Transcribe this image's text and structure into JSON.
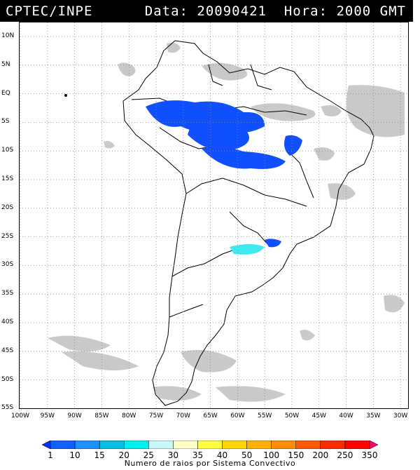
{
  "header": {
    "source": "CPTEC/INPE",
    "date_label": "Data: 20090421",
    "time_label": "Hora: 2000 GMT"
  },
  "map": {
    "lat_labels": [
      "10N",
      "5N",
      "EQ",
      "5S",
      "10S",
      "15S",
      "20S",
      "25S",
      "30S",
      "35S",
      "40S",
      "45S",
      "50S",
      "55S"
    ],
    "lon_labels": [
      "100W",
      "95W",
      "90W",
      "85W",
      "80W",
      "75W",
      "70W",
      "65W",
      "60W",
      "55W",
      "50W",
      "45W",
      "40W",
      "35W",
      "30W"
    ],
    "grid": "dotted",
    "cloud_color": "#c8c8c8"
  },
  "legend": {
    "ticks": [
      "1",
      "10",
      "15",
      "20",
      "25",
      "30",
      "35",
      "40",
      "50",
      "100",
      "150",
      "200",
      "250",
      "350"
    ],
    "colors": [
      "#0030ff",
      "#1060ff",
      "#1e90ff",
      "#00bfe0",
      "#00f0f0",
      "#c8f8f8",
      "#ffffc8",
      "#ffff40",
      "#ffd700",
      "#ffb000",
      "#ff8c00",
      "#ff5a00",
      "#ff2a00",
      "#ff0000",
      "#ff0070"
    ],
    "title": "Numero de raios por Sistema Convectivo"
  }
}
